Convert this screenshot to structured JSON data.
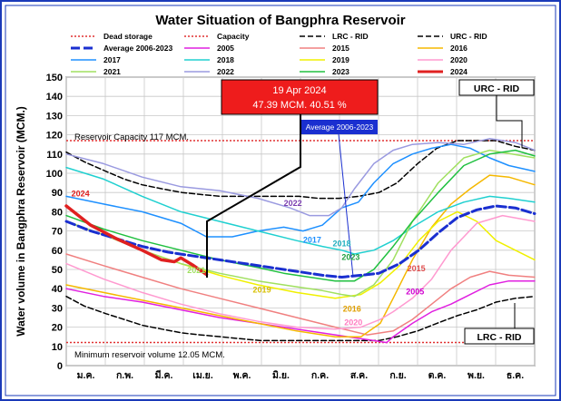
{
  "chart_data": {
    "type": "line",
    "title": "Water Situation of Bangphra Reservoir",
    "ylabel": "Water volume in Bangphra Reservoir (MCM.)",
    "xlabel": "",
    "ylim": [
      0,
      150
    ],
    "yticks": [
      0,
      10,
      20,
      30,
      40,
      50,
      60,
      70,
      80,
      90,
      100,
      110,
      120,
      130,
      140,
      150
    ],
    "months": [
      "ม.ค.",
      "ก.พ.",
      "มี.ค.",
      "เม.ย.",
      "พ.ค.",
      "มิ.ย.",
      "ก.ค.",
      "ส.ค.",
      "ก.ย.",
      "ต.ค.",
      "พ.ย.",
      "ธ.ค."
    ],
    "grid": true,
    "legend_position": "top",
    "legend": [
      {
        "name": "Dead storage",
        "color": "#e03030",
        "dash": "2,2",
        "width": 1.5
      },
      {
        "name": "Capacity",
        "color": "#e03030",
        "dash": "2,2",
        "width": 1.5
      },
      {
        "name": "LRC - RID",
        "color": "#000000",
        "dash": "6,3",
        "width": 1.5
      },
      {
        "name": "URC - RID",
        "color": "#000000",
        "dash": "6,3",
        "width": 1.5
      },
      {
        "name": "Average 2006-2023",
        "color": "#1a2fd0",
        "dash": "10,4",
        "width": 3
      },
      {
        "name": "2005",
        "color": "#e020e0",
        "dash": "",
        "width": 1.5
      },
      {
        "name": "2015",
        "color": "#f08080",
        "dash": "",
        "width": 1.5
      },
      {
        "name": "2016",
        "color": "#f5b800",
        "dash": "",
        "width": 1.5
      },
      {
        "name": "2017",
        "color": "#1e90ff",
        "dash": "",
        "width": 1.5
      },
      {
        "name": "2018",
        "color": "#20d0d0",
        "dash": "",
        "width": 1.5
      },
      {
        "name": "2019",
        "color": "#f0f000",
        "dash": "",
        "width": 1.5
      },
      {
        "name": "2020",
        "color": "#ff9ad0",
        "dash": "",
        "width": 1.5
      },
      {
        "name": "2021",
        "color": "#a0e060",
        "dash": "",
        "width": 1.5
      },
      {
        "name": "2022",
        "color": "#9a9ae0",
        "dash": "",
        "width": 1.5
      },
      {
        "name": "2023",
        "color": "#20c040",
        "dash": "",
        "width": 1.5
      },
      {
        "name": "2024",
        "color": "#e02020",
        "dash": "",
        "width": 3.5
      }
    ],
    "reference_lines": [
      {
        "name": "Capacity",
        "value": 117,
        "color": "#e03030"
      },
      {
        "name": "Dead storage",
        "value": 12.05,
        "color": "#e03030"
      }
    ],
    "series": [
      {
        "name": "URC - RID",
        "color": "#000000",
        "dash": "6,3",
        "width": 1.5,
        "x": [
          1,
          15,
          32,
          46,
          60,
          75,
          91,
          105,
          121,
          136,
          152,
          167,
          182,
          197,
          213,
          228,
          244,
          258,
          274,
          289,
          305,
          320,
          335,
          350,
          365
        ],
        "y": [
          111,
          106,
          101,
          97,
          94,
          92,
          90,
          89,
          88,
          88,
          88,
          88,
          88,
          87,
          87,
          88,
          90,
          95,
          105,
          113,
          117,
          117,
          117,
          114,
          112
        ]
      },
      {
        "name": "LRC - RID",
        "color": "#000000",
        "dash": "6,3",
        "width": 1.5,
        "x": [
          1,
          15,
          32,
          46,
          60,
          75,
          91,
          105,
          121,
          136,
          152,
          167,
          182,
          197,
          213,
          228,
          244,
          258,
          274,
          289,
          305,
          320,
          335,
          350,
          365
        ],
        "y": [
          36,
          31,
          27,
          24,
          21,
          19,
          17,
          16,
          15,
          14,
          13,
          13,
          13,
          13,
          13,
          13,
          13,
          15,
          18,
          22,
          26,
          29,
          33,
          35,
          36
        ]
      },
      {
        "name": "Average 2006-2023",
        "color": "#1a2fd0",
        "dash": "10,4",
        "width": 3,
        "x": [
          1,
          20,
          40,
          60,
          80,
          100,
          120,
          140,
          160,
          180,
          200,
          215,
          230,
          244,
          260,
          275,
          290,
          305,
          320,
          335,
          350,
          365
        ],
        "y": [
          75,
          70,
          66,
          62,
          59,
          57,
          55,
          53,
          51,
          49,
          47,
          46,
          47,
          48,
          53,
          60,
          69,
          77,
          81,
          83,
          82,
          79
        ]
      },
      {
        "name": "2005",
        "color": "#e020e0",
        "dash": "",
        "width": 1.5,
        "x": [
          1,
          30,
          60,
          90,
          120,
          150,
          180,
          210,
          240,
          250,
          255,
          270,
          285,
          300,
          315,
          330,
          345,
          365
        ],
        "y": [
          40,
          36,
          33,
          29,
          25,
          22,
          19,
          16,
          13,
          12,
          15,
          22,
          28,
          32,
          37,
          42,
          44,
          44
        ]
      },
      {
        "name": "2015",
        "color": "#f08080",
        "dash": "",
        "width": 1.5,
        "x": [
          1,
          30,
          60,
          90,
          120,
          150,
          180,
          210,
          235,
          255,
          270,
          285,
          300,
          315,
          330,
          345,
          365
        ],
        "y": [
          58,
          52,
          46,
          40,
          35,
          30,
          25,
          20,
          16,
          18,
          24,
          32,
          40,
          46,
          49,
          47,
          46
        ]
      },
      {
        "name": "2016",
        "color": "#f5b800",
        "dash": "",
        "width": 1.5,
        "x": [
          1,
          30,
          60,
          90,
          120,
          150,
          180,
          210,
          230,
          245,
          255,
          270,
          285,
          300,
          315,
          330,
          345,
          365
        ],
        "y": [
          42,
          38,
          34,
          30,
          26,
          22,
          18,
          15,
          15,
          22,
          35,
          55,
          72,
          84,
          92,
          99,
          98,
          94
        ]
      },
      {
        "name": "2017",
        "color": "#1e90ff",
        "dash": "",
        "width": 1.5,
        "x": [
          1,
          30,
          60,
          90,
          110,
          130,
          150,
          170,
          185,
          200,
          215,
          228,
          240,
          255,
          270,
          285,
          300,
          315,
          330,
          345,
          365
        ],
        "y": [
          88,
          84,
          80,
          74,
          67,
          67,
          70,
          72,
          70,
          73,
          82,
          85,
          95,
          105,
          110,
          113,
          115,
          113,
          108,
          104,
          101
        ]
      },
      {
        "name": "2018",
        "color": "#20d0d0",
        "dash": "",
        "width": 1.5,
        "x": [
          1,
          30,
          60,
          90,
          120,
          150,
          180,
          200,
          215,
          225,
          240,
          255,
          270,
          290,
          310,
          330,
          345,
          365
        ],
        "y": [
          103,
          97,
          88,
          80,
          75,
          70,
          65,
          62,
          60,
          58,
          60,
          65,
          72,
          80,
          85,
          88,
          87,
          85
        ]
      },
      {
        "name": "2019",
        "color": "#f0f000",
        "dash": "",
        "width": 1.5,
        "x": [
          1,
          30,
          60,
          90,
          120,
          150,
          180,
          210,
          230,
          245,
          260,
          275,
          290,
          305,
          320,
          335,
          350,
          365
        ],
        "y": [
          75,
          68,
          60,
          53,
          47,
          42,
          38,
          35,
          37,
          43,
          52,
          65,
          75,
          80,
          75,
          65,
          60,
          55
        ]
      },
      {
        "name": "2020",
        "color": "#ff9ad0",
        "dash": "",
        "width": 1.5,
        "x": [
          1,
          30,
          60,
          90,
          120,
          150,
          180,
          210,
          230,
          245,
          255,
          270,
          285,
          300,
          320,
          340,
          365
        ],
        "y": [
          53,
          45,
          38,
          32,
          27,
          23,
          20,
          19,
          20,
          24,
          28,
          35,
          45,
          60,
          74,
          78,
          75
        ]
      },
      {
        "name": "2021",
        "color": "#a0e060",
        "dash": "",
        "width": 1.5,
        "x": [
          1,
          30,
          60,
          90,
          120,
          150,
          180,
          200,
          215,
          225,
          240,
          255,
          270,
          290,
          310,
          330,
          365
        ],
        "y": [
          75,
          68,
          60,
          53,
          48,
          44,
          41,
          39,
          37,
          36,
          42,
          55,
          75,
          95,
          108,
          112,
          108
        ]
      },
      {
        "name": "2022",
        "color": "#9a9ae0",
        "dash": "",
        "width": 1.5,
        "x": [
          1,
          30,
          60,
          90,
          120,
          150,
          175,
          190,
          205,
          215,
          225,
          240,
          255,
          270,
          290,
          310,
          330,
          350,
          365
        ],
        "y": [
          110,
          105,
          98,
          93,
          91,
          87,
          82,
          78,
          78,
          82,
          92,
          105,
          112,
          115,
          116,
          115,
          118,
          116,
          112
        ]
      },
      {
        "name": "2023",
        "color": "#20c040",
        "dash": "",
        "width": 1.5,
        "x": [
          1,
          30,
          60,
          90,
          120,
          150,
          170,
          190,
          210,
          225,
          240,
          255,
          270,
          290,
          310,
          330,
          350,
          365
        ],
        "y": [
          78,
          71,
          65,
          60,
          55,
          51,
          48,
          46,
          44,
          44,
          50,
          62,
          75,
          90,
          104,
          110,
          112,
          109
        ]
      },
      {
        "name": "2024",
        "color": "#e02020",
        "dash": "",
        "width": 3.5,
        "x": [
          1,
          20,
          40,
          60,
          75,
          85,
          90,
          95,
          100,
          110
        ],
        "y": [
          83,
          73,
          66,
          60,
          55,
          54,
          56,
          54,
          52,
          47.39
        ]
      }
    ],
    "annotations": [
      {
        "text": "Reservoir Capacity 117 MCM.",
        "kind": "plain"
      },
      {
        "text": "Minimum reservoir volume 12.05 MCM.",
        "kind": "plain"
      },
      {
        "text": "19 Apr 2024",
        "kind": "callout-line1"
      },
      {
        "text": "47.39 MCM. 40.51 %",
        "kind": "callout-line2"
      },
      {
        "text": "Average 2006-2023",
        "kind": "avg-box"
      },
      {
        "text": "URC - RID",
        "kind": "box"
      },
      {
        "text": "LRC - RID",
        "kind": "box"
      }
    ],
    "series_labels": [
      {
        "text": "2024",
        "color": "#e02020",
        "x": 5,
        "y": 88
      },
      {
        "text": "2022",
        "color": "#7a3fb0",
        "x": 170,
        "y": 83
      },
      {
        "text": "2021",
        "color": "#a0e060",
        "x": 95,
        "y": 48
      },
      {
        "text": "2017",
        "color": "#1e90ff",
        "x": 185,
        "y": 64
      },
      {
        "text": "2018",
        "color": "#20b0c0",
        "x": 208,
        "y": 62
      },
      {
        "text": "2023",
        "color": "#20a040",
        "x": 215,
        "y": 55
      },
      {
        "text": "2019",
        "color": "#d8c000",
        "x": 146,
        "y": 38
      },
      {
        "text": "2016",
        "color": "#e0a000",
        "x": 216,
        "y": 28
      },
      {
        "text": "2020",
        "color": "#ff7ac0",
        "x": 217,
        "y": 21
      },
      {
        "text": "2015",
        "color": "#e05050",
        "x": 266,
        "y": 49
      },
      {
        "text": "2005",
        "color": "#d000d0",
        "x": 265,
        "y": 37
      }
    ]
  }
}
